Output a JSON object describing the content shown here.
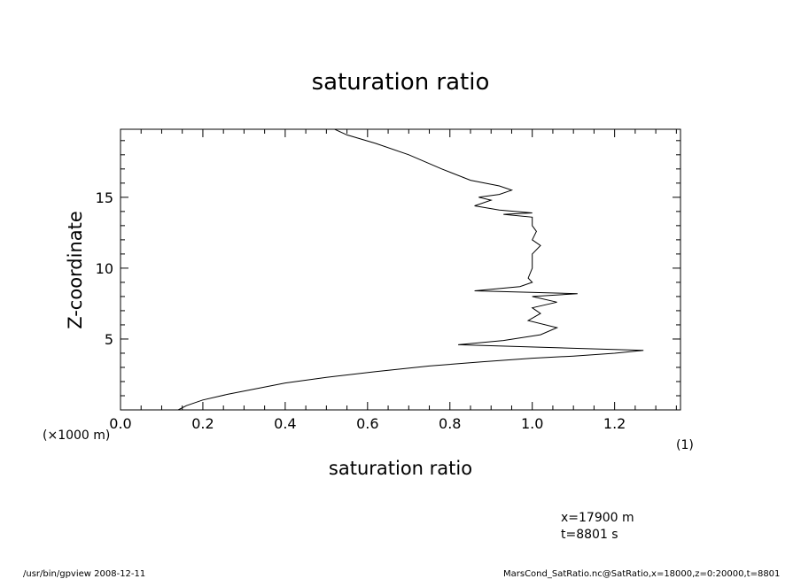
{
  "chart_data": {
    "type": "line",
    "title": "saturation ratio",
    "xlabel": "saturation ratio",
    "ylabel": "Z-coordinate",
    "xunit": "(1)",
    "yunit": "(×1000 m)",
    "xlim": [
      0.0,
      1.36
    ],
    "ylim": [
      0.0,
      19.8
    ],
    "xticks": [
      "0.0",
      "0.2",
      "0.4",
      "0.6",
      "0.8",
      "1.0",
      "1.2"
    ],
    "yticks": [
      "5",
      "10",
      "15"
    ],
    "series": [
      {
        "points": [
          [
            0.14,
            0.0
          ],
          [
            0.16,
            0.3
          ],
          [
            0.2,
            0.7
          ],
          [
            0.26,
            1.1
          ],
          [
            0.33,
            1.5
          ],
          [
            0.4,
            1.9
          ],
          [
            0.5,
            2.3
          ],
          [
            0.62,
            2.7
          ],
          [
            0.75,
            3.1
          ],
          [
            0.88,
            3.4
          ],
          [
            1.0,
            3.65
          ],
          [
            1.1,
            3.8
          ],
          [
            1.2,
            4.0
          ],
          [
            1.27,
            4.2
          ],
          [
            0.82,
            4.6
          ],
          [
            0.93,
            4.9
          ],
          [
            1.02,
            5.3
          ],
          [
            1.06,
            5.8
          ],
          [
            0.99,
            6.3
          ],
          [
            1.02,
            6.8
          ],
          [
            1.0,
            7.2
          ],
          [
            1.06,
            7.6
          ],
          [
            1.0,
            8.0
          ],
          [
            1.11,
            8.2
          ],
          [
            0.86,
            8.4
          ],
          [
            0.97,
            8.7
          ],
          [
            1.0,
            9.0
          ],
          [
            0.99,
            9.3
          ],
          [
            1.0,
            10.0
          ],
          [
            1.0,
            11.0
          ],
          [
            1.02,
            11.6
          ],
          [
            1.0,
            12.0
          ],
          [
            1.01,
            12.6
          ],
          [
            1.0,
            13.0
          ],
          [
            1.0,
            13.6
          ],
          [
            0.93,
            13.8
          ],
          [
            1.0,
            13.9
          ],
          [
            0.92,
            14.1
          ],
          [
            0.86,
            14.4
          ],
          [
            0.9,
            14.8
          ],
          [
            0.87,
            15.0
          ],
          [
            0.92,
            15.2
          ],
          [
            0.95,
            15.5
          ],
          [
            0.92,
            15.8
          ],
          [
            0.85,
            16.2
          ],
          [
            0.78,
            17.0
          ],
          [
            0.7,
            18.0
          ],
          [
            0.62,
            18.8
          ],
          [
            0.55,
            19.4
          ],
          [
            0.52,
            19.8
          ]
        ]
      }
    ]
  },
  "annotations": {
    "x_pos": "x=17900  m",
    "t_pos": "t=8801  s"
  },
  "footer": {
    "left": "/usr/bin/gpview   2008-12-11",
    "right": "MarsCond_SatRatio.nc@SatRatio,x=18000,z=0:20000,t=8801"
  }
}
